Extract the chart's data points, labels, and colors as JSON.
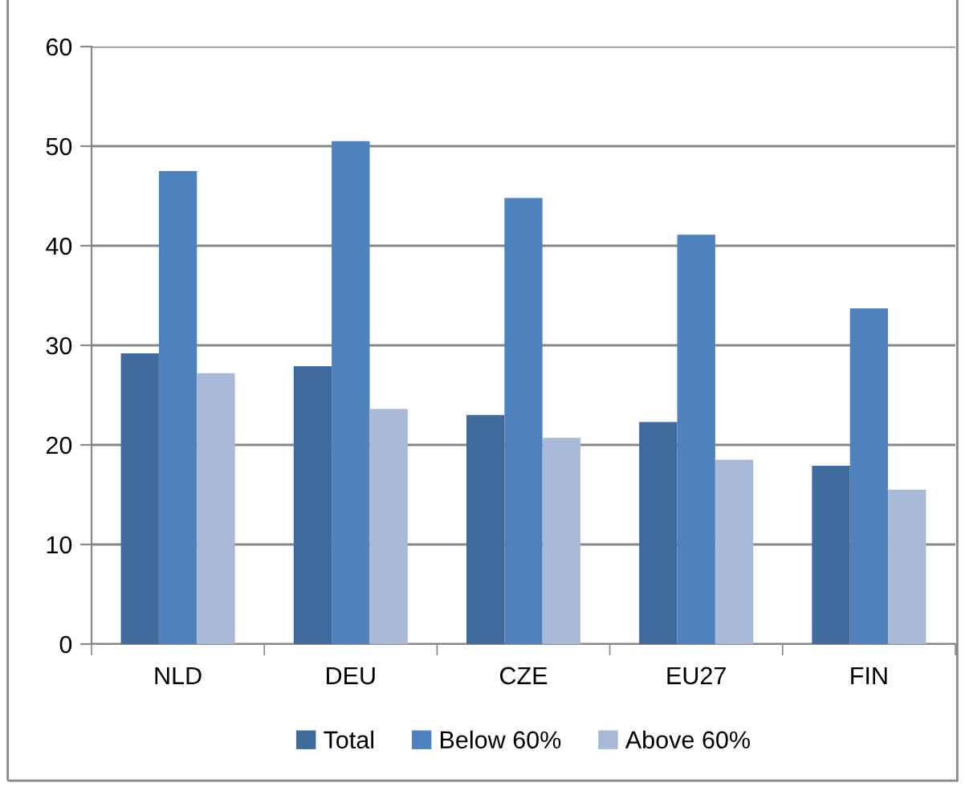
{
  "chart_data": {
    "type": "bar",
    "categories": [
      "NLD",
      "DEU",
      "CZE",
      "EU27",
      "FIN"
    ],
    "series": [
      {
        "name": "Total",
        "color": "#3f6a9c",
        "values": [
          29.2,
          27.9,
          23.0,
          22.3,
          17.9
        ]
      },
      {
        "name": "Below 60%",
        "color": "#4f81bd",
        "values": [
          47.5,
          50.5,
          44.8,
          41.1,
          33.7
        ]
      },
      {
        "name": "Above 60%",
        "color": "#aab9d8",
        "values": [
          27.2,
          23.6,
          20.7,
          18.5,
          15.5
        ]
      }
    ],
    "ylim": [
      0,
      60
    ],
    "yticks": [
      0,
      10,
      20,
      30,
      40,
      50,
      60
    ],
    "grid": "y",
    "legend": "bottom"
  }
}
